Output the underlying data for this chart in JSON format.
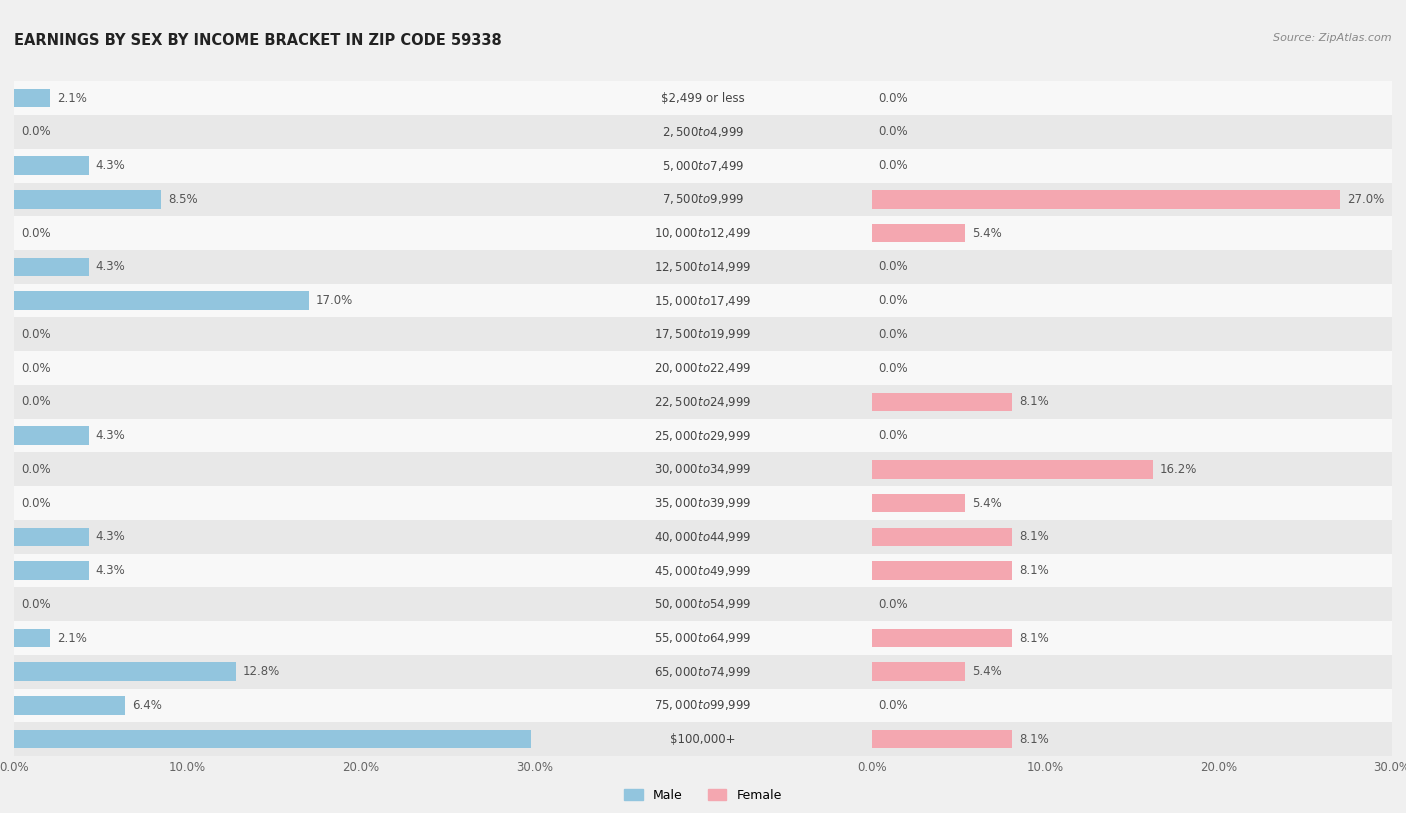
{
  "title": "EARNINGS BY SEX BY INCOME BRACKET IN ZIP CODE 59338",
  "source": "Source: ZipAtlas.com",
  "categories": [
    "$2,499 or less",
    "$2,500 to $4,999",
    "$5,000 to $7,499",
    "$7,500 to $9,999",
    "$10,000 to $12,499",
    "$12,500 to $14,999",
    "$15,000 to $17,499",
    "$17,500 to $19,999",
    "$20,000 to $22,499",
    "$22,500 to $24,999",
    "$25,000 to $29,999",
    "$30,000 to $34,999",
    "$35,000 to $39,999",
    "$40,000 to $44,999",
    "$45,000 to $49,999",
    "$50,000 to $54,999",
    "$55,000 to $64,999",
    "$65,000 to $74,999",
    "$75,000 to $99,999",
    "$100,000+"
  ],
  "male_values": [
    2.1,
    0.0,
    4.3,
    8.5,
    0.0,
    4.3,
    17.0,
    0.0,
    0.0,
    0.0,
    4.3,
    0.0,
    0.0,
    4.3,
    4.3,
    0.0,
    2.1,
    12.8,
    6.4,
    29.8
  ],
  "female_values": [
    0.0,
    0.0,
    0.0,
    27.0,
    5.4,
    0.0,
    0.0,
    0.0,
    0.0,
    8.1,
    0.0,
    16.2,
    5.4,
    8.1,
    8.1,
    0.0,
    8.1,
    5.4,
    0.0,
    8.1
  ],
  "male_color": "#92c5de",
  "female_color": "#f4a7b0",
  "male_label": "Male",
  "female_label": "Female",
  "x_max": 30.0,
  "background_color": "#f0f0f0",
  "row_color_odd": "#f8f8f8",
  "row_color_even": "#e8e8e8",
  "title_fontsize": 10.5,
  "cat_fontsize": 8.5,
  "val_fontsize": 8.5,
  "axis_fontsize": 8.5,
  "source_fontsize": 8
}
